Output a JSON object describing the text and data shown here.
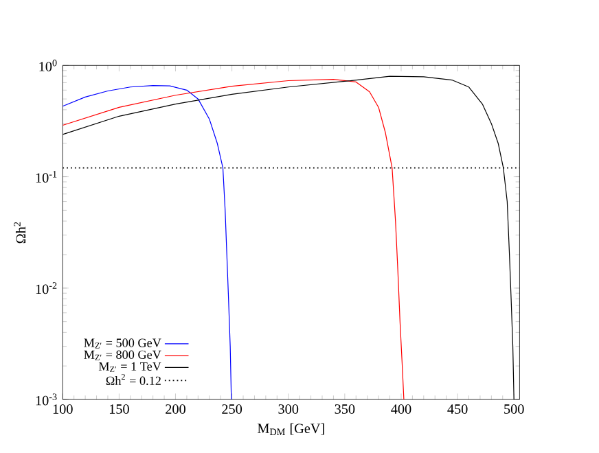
{
  "chart_data": {
    "type": "line",
    "xlabel": "M$_{DM}$ [GeV]",
    "ylabel": "Ωh$^{2}$",
    "log": "y",
    "xlim": [
      100,
      505
    ],
    "ylim": [
      0.001,
      1
    ],
    "xticks": [
      100,
      150,
      200,
      250,
      300,
      350,
      400,
      450,
      500
    ],
    "yticks": [
      {
        "value": 0.001,
        "label": "10$^{-3}$"
      },
      {
        "value": 0.01,
        "label": "10$^{-2}$"
      },
      {
        "value": 0.1,
        "label": "10$^{-1}$"
      },
      {
        "value": 1,
        "label": "10$^{0}$"
      }
    ],
    "legend": "bottom left",
    "grid": false,
    "marker": "none",
    "line_style": "solid",
    "series": [
      {
        "name": "M$_{Z′}$ = 500 GeV",
        "color": "#0000ff",
        "x": [
          100,
          120,
          140,
          160,
          180,
          195,
          210,
          220,
          230,
          237,
          242,
          244,
          245.5,
          247,
          248.5,
          249.5
        ],
        "values": [
          0.43,
          0.52,
          0.59,
          0.64,
          0.66,
          0.655,
          0.6,
          0.5,
          0.33,
          0.2,
          0.12,
          0.05,
          0.02,
          0.008,
          0.003,
          0.001
        ]
      },
      {
        "name": "M$_{Z′}$ = 800 GeV",
        "color": "#ff0000",
        "x": [
          100,
          150,
          200,
          250,
          300,
          340,
          360,
          372,
          380,
          386,
          392,
          395,
          397,
          399,
          401,
          402.4
        ],
        "values": [
          0.29,
          0.42,
          0.54,
          0.65,
          0.73,
          0.75,
          0.71,
          0.58,
          0.42,
          0.25,
          0.12,
          0.04,
          0.015,
          0.005,
          0.002,
          0.001
        ]
      },
      {
        "name": "M$_{Z′}$ = 1 TeV",
        "color": "#000000",
        "x": [
          100,
          150,
          200,
          250,
          300,
          350,
          390,
          420,
          445,
          460,
          472,
          480,
          486,
          490.6,
          494,
          496,
          497.5,
          499,
          500
        ],
        "values": [
          0.24,
          0.35,
          0.45,
          0.55,
          0.64,
          0.72,
          0.8,
          0.79,
          0.74,
          0.64,
          0.45,
          0.3,
          0.2,
          0.12,
          0.06,
          0.02,
          0.008,
          0.003,
          0.001
        ]
      }
    ],
    "ref_lines": [
      {
        "axis": "y",
        "value": 0.12,
        "label": "Ωh$^{2}$ = 0.12",
        "color": "#000000",
        "line_style": "dotted"
      }
    ]
  }
}
